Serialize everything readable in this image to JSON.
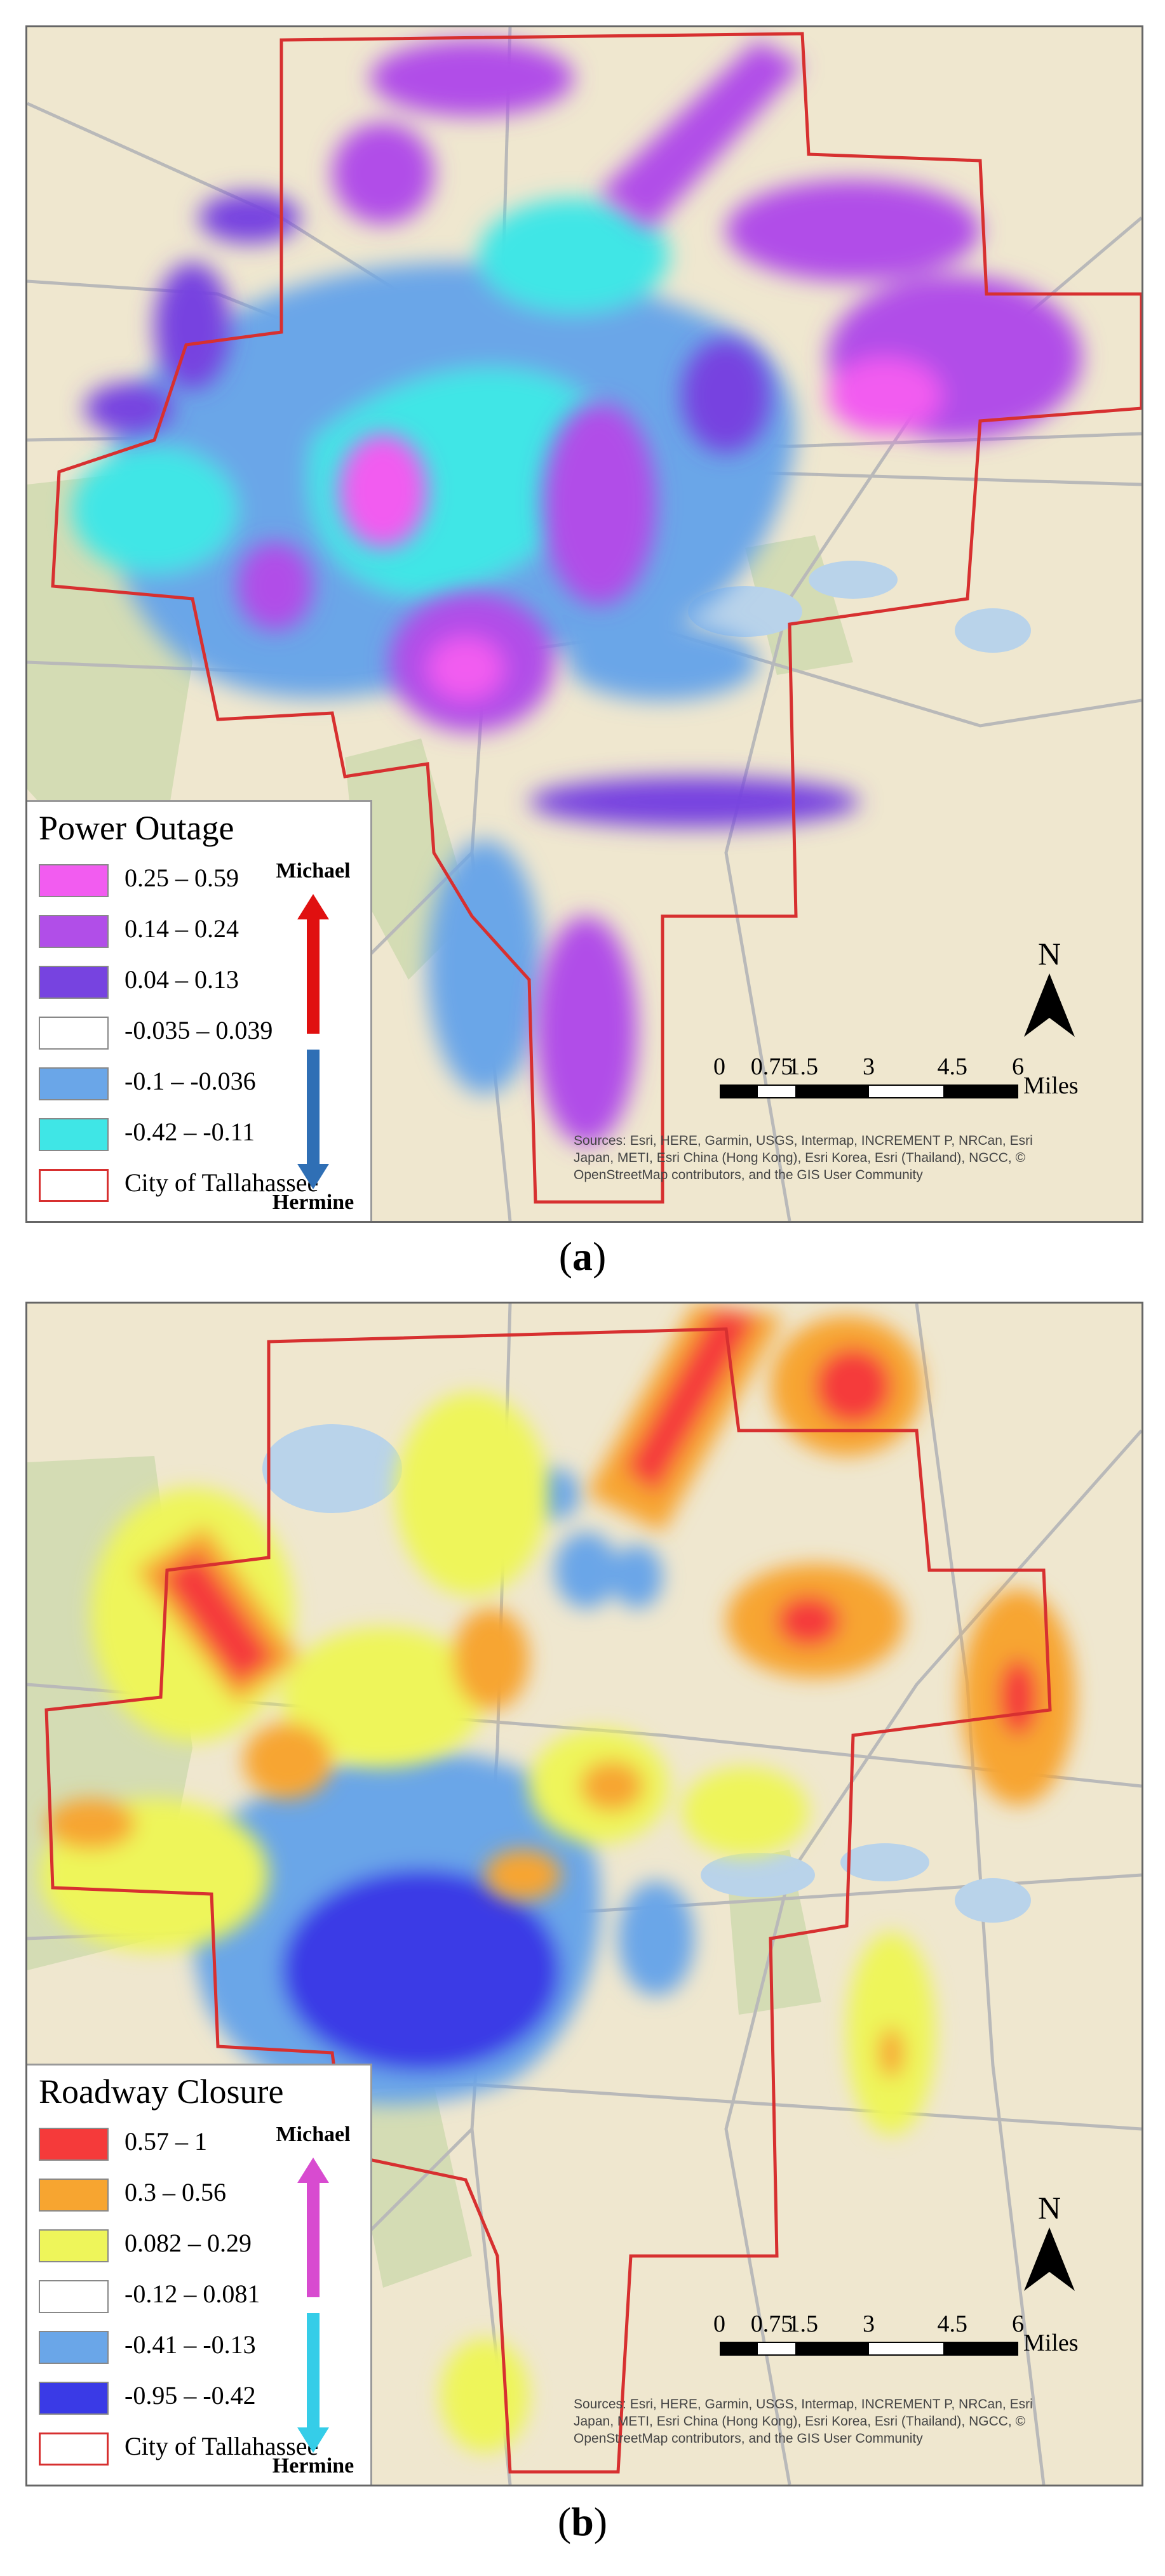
{
  "panel_a": {
    "caption_letter": "a",
    "legend": {
      "title": "Power Outage",
      "classes": [
        {
          "label": "0.25 – 0.59",
          "color": "#f25cf0"
        },
        {
          "label": "0.14 – 0.24",
          "color": "#b14ee8"
        },
        {
          "label": "0.04 – 0.13",
          "color": "#7743e0"
        },
        {
          "label": "-0.035 – 0.039",
          "color": "#ffffff"
        },
        {
          "label": "-0.1 – -0.036",
          "color": "#6aa6e8"
        },
        {
          "label": "-0.42 – -0.11",
          "color": "#3fe6e6"
        },
        {
          "label": "City of Tallahassee",
          "color": "#ffffff"
        }
      ],
      "arrow_top_label": "Michael",
      "arrow_bottom_label": "Hermine",
      "arrow_top_color": "#e01010",
      "arrow_bottom_color": "#2f6fb5"
    },
    "north_label": "N",
    "scale": {
      "ticks": [
        "0",
        "0.75",
        "1.5",
        "3",
        "4.5",
        "6"
      ],
      "unit": "Miles"
    },
    "attribution": "Sources: Esri, HERE, Garmin, USGS, Intermap, INCREMENT P, NRCan, Esri Japan, METI, Esri China (Hong Kong), Esri Korea, Esri (Thailand), NGCC, © OpenStreetMap contributors, and the GIS User Community"
  },
  "panel_b": {
    "caption_letter": "b",
    "legend": {
      "title": "Roadway Closure",
      "classes": [
        {
          "label": "0.57 – 1",
          "color": "#f53a3a"
        },
        {
          "label": "0.3 – 0.56",
          "color": "#f7a530"
        },
        {
          "label": "0.082 – 0.29",
          "color": "#eef55a"
        },
        {
          "label": "-0.12 – 0.081",
          "color": "#ffffff"
        },
        {
          "label": "-0.41 – -0.13",
          "color": "#6aa6e8"
        },
        {
          "label": "-0.95 – -0.42",
          "color": "#3a3ae6"
        },
        {
          "label": "City of Tallahassee",
          "color": "#ffffff"
        }
      ],
      "arrow_top_label": "Michael",
      "arrow_bottom_label": "Hermine",
      "arrow_top_color": "#d84bd0",
      "arrow_bottom_color": "#35cde8"
    },
    "north_label": "N",
    "scale": {
      "ticks": [
        "0",
        "0.75",
        "1.5",
        "3",
        "4.5",
        "6"
      ],
      "unit": "Miles"
    },
    "attribution": "Sources: Esri, HERE, Garmin, USGS, Intermap, INCREMENT P, NRCan, Esri Japan, METI, Esri China (Hong Kong), Esri Korea, Esri (Thailand), NGCC, © OpenStreetMap contributors, and the GIS User Community"
  }
}
